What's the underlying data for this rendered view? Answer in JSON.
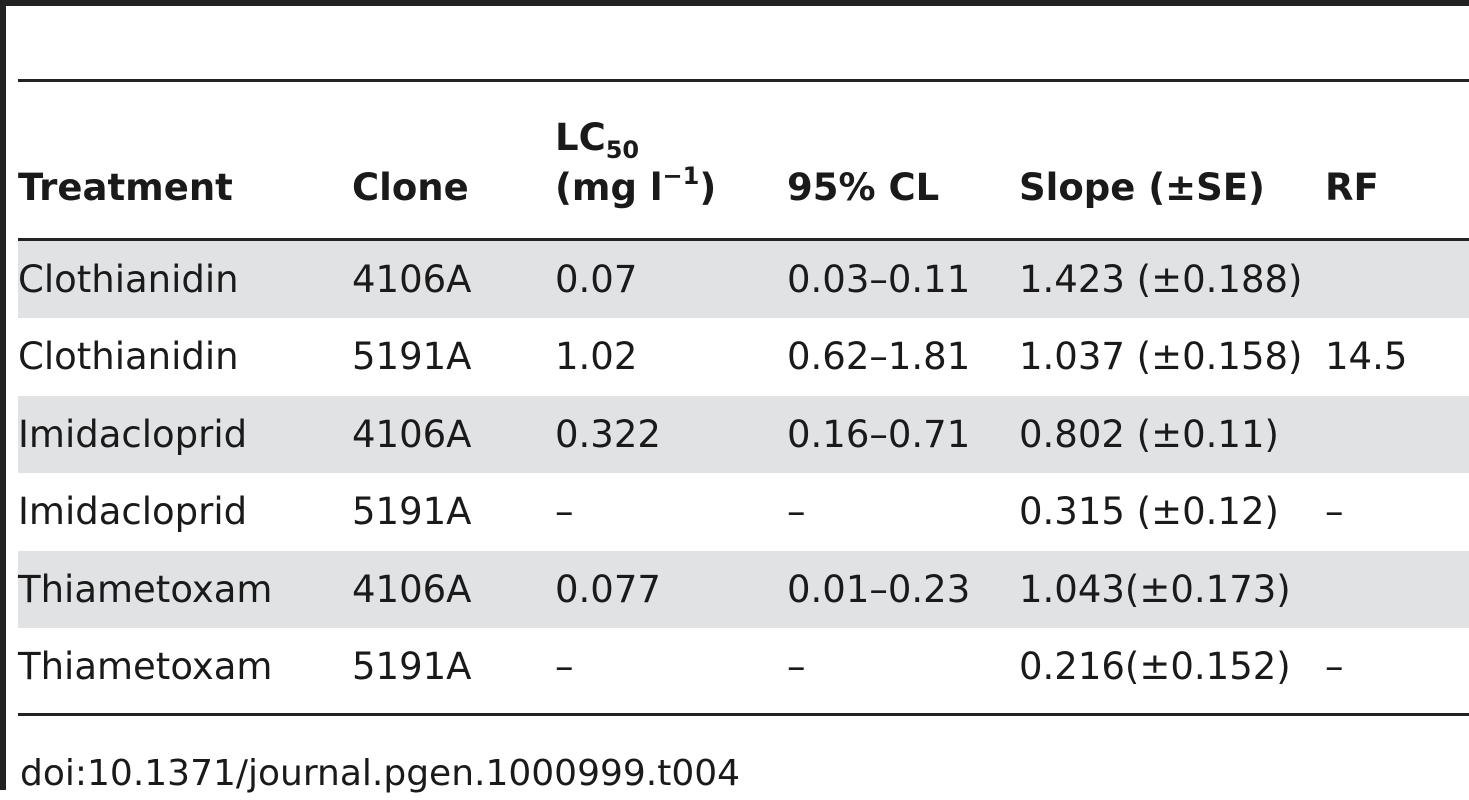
{
  "table": {
    "headers": {
      "treatment": "Treatment",
      "clone": "Clone",
      "lc50_main": "LC",
      "lc50_sub": "50",
      "lc50_unit_open": "(mg l",
      "lc50_unit_sup": "−1",
      "lc50_unit_close": ")",
      "cl": "95% CL",
      "slope": "Slope (±SE)",
      "rf": "RF"
    },
    "rows": [
      {
        "treatment": "Clothianidin",
        "clone": "4106A",
        "lc50": "0.07",
        "cl": "0.03–0.11",
        "slope": "1.423 (±0.188)",
        "rf": ""
      },
      {
        "treatment": "Clothianidin",
        "clone": "5191A",
        "lc50": "1.02",
        "cl": "0.62–1.81",
        "slope": "1.037 (±0.158)",
        "rf": "14.5"
      },
      {
        "treatment": "Imidacloprid",
        "clone": "4106A",
        "lc50": "0.322",
        "cl": "0.16–0.71",
        "slope": "0.802 (±0.11)",
        "rf": ""
      },
      {
        "treatment": "Imidacloprid",
        "clone": "5191A",
        "lc50": "–",
        "cl": "–",
        "slope": "0.315 (±0.12)",
        "rf": "–"
      },
      {
        "treatment": "Thiametoxam",
        "clone": "4106A",
        "lc50": "0.077",
        "cl": "0.01–0.23",
        "slope": "1.043(±0.173)",
        "rf": ""
      },
      {
        "treatment": "Thiametoxam",
        "clone": "5191A",
        "lc50": "–",
        "cl": "–",
        "slope": "0.216(±0.152)",
        "rf": "–"
      }
    ]
  },
  "footer": {
    "doi": "doi:10.1371/journal.pgen.1000999.t004"
  }
}
